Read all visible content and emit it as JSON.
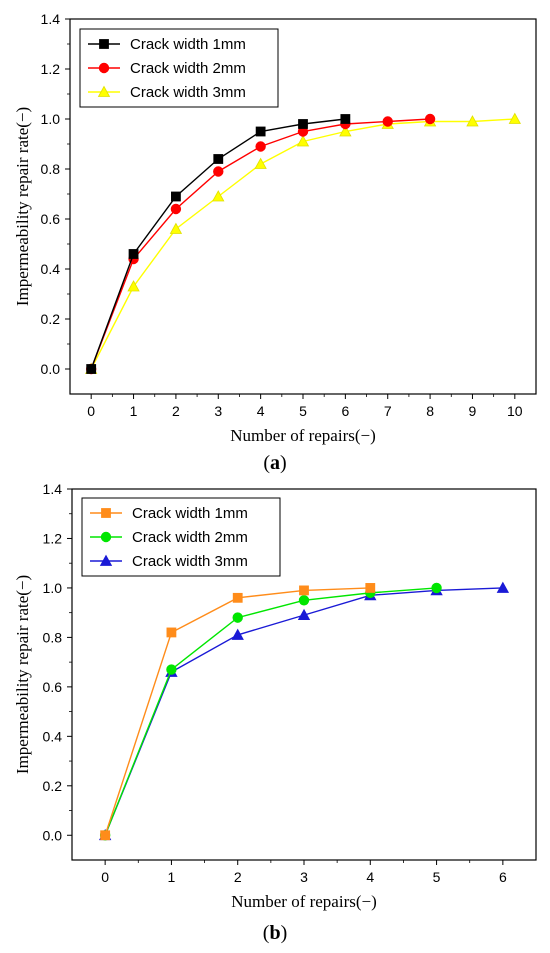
{
  "chart_data": [
    {
      "type": "line",
      "panel_label": "a",
      "xlabel": "Number of repairs(−)",
      "ylabel": "Impermeability repair rate(−)",
      "xlim": [
        -0.5,
        10.5
      ],
      "ylim": [
        -0.1,
        1.4
      ],
      "xticks": [
        "0",
        "1",
        "2",
        "3",
        "4",
        "5",
        "6",
        "7",
        "8",
        "9",
        "10"
      ],
      "yticks": [
        "0.0",
        "0.2",
        "0.4",
        "0.6",
        "0.8",
        "1.0",
        "1.2",
        "1.4"
      ],
      "legend_position": "top-left",
      "grid": false,
      "series": [
        {
          "name": "Crack width 1mm",
          "color": "#000000",
          "marker": "square",
          "x": [
            0,
            1,
            2,
            3,
            4,
            5,
            6
          ],
          "y": [
            0.0,
            0.46,
            0.69,
            0.84,
            0.95,
            0.98,
            1.0
          ]
        },
        {
          "name": "Crack width 2mm",
          "color": "#ff0000",
          "marker": "circle",
          "x": [
            0,
            1,
            2,
            3,
            4,
            5,
            6,
            7,
            8
          ],
          "y": [
            0.0,
            0.44,
            0.64,
            0.79,
            0.89,
            0.95,
            0.98,
            0.99,
            1.0
          ]
        },
        {
          "name": "Crack width 3mm",
          "color": "#ffff00",
          "marker": "triangle",
          "x": [
            0,
            1,
            2,
            3,
            4,
            5,
            6,
            7,
            8,
            9,
            10
          ],
          "y": [
            0.0,
            0.33,
            0.56,
            0.69,
            0.82,
            0.91,
            0.95,
            0.98,
            0.99,
            0.99,
            1.0
          ]
        }
      ]
    },
    {
      "type": "line",
      "panel_label": "b",
      "xlabel": "Number of repairs(−)",
      "ylabel": "Impermeability repair rate(−)",
      "xlim": [
        -0.5,
        6.5
      ],
      "ylim": [
        -0.1,
        1.4
      ],
      "xticks": [
        "0",
        "1",
        "2",
        "3",
        "4",
        "5",
        "6"
      ],
      "yticks": [
        "0.0",
        "0.2",
        "0.4",
        "0.6",
        "0.8",
        "1.0",
        "1.2",
        "1.4"
      ],
      "legend_position": "top-left",
      "grid": false,
      "series": [
        {
          "name": "Crack width 1mm",
          "color": "#ff8c1a",
          "marker": "square",
          "x": [
            0,
            1,
            2,
            3,
            4
          ],
          "y": [
            0.0,
            0.82,
            0.96,
            0.99,
            1.0
          ]
        },
        {
          "name": "Crack width 2mm",
          "color": "#00e600",
          "marker": "circle",
          "x": [
            0,
            1,
            2,
            3,
            4,
            5
          ],
          "y": [
            0.0,
            0.67,
            0.88,
            0.95,
            0.98,
            1.0
          ]
        },
        {
          "name": "Crack width 3mm",
          "color": "#1a1ad6",
          "marker": "triangle",
          "x": [
            0,
            1,
            2,
            3,
            4,
            5,
            6
          ],
          "y": [
            0.0,
            0.66,
            0.81,
            0.89,
            0.97,
            0.99,
            1.0
          ]
        }
      ]
    }
  ]
}
